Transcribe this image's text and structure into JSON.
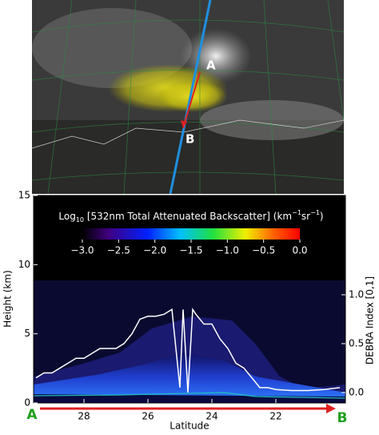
{
  "chart_data": {
    "type": "line",
    "satellite_labels": [
      "A",
      "B"
    ],
    "colorbar_label": [
      "Log",
      "10",
      " [532nm Total Attenuated Backscatter] (km",
      "−1",
      "sr",
      "−1",
      ")"
    ],
    "colorbar_lim": [
      -3,
      0
    ],
    "colorbar_ticks": [
      {
        "value": -3,
        "label": "−3.0"
      },
      {
        "value": -2.5,
        "label": "−2.5"
      },
      {
        "value": -2,
        "label": "−2.0"
      },
      {
        "value": -1.5,
        "label": "−1.5"
      },
      {
        "value": -1,
        "label": "−1.0"
      },
      {
        "value": -0.5,
        "label": "−0.5"
      },
      {
        "value": 0,
        "label": "0.0"
      }
    ],
    "x_label": "Latitude",
    "y_label": "Height (km)",
    "y2_label": "DEBRA Index [0,1]",
    "endpoints": [
      "A",
      "B"
    ],
    "xlim": [
      29.575,
      19.825
    ],
    "xticks": [
      28,
      26,
      24,
      22
    ],
    "ylim": [
      0,
      15
    ],
    "yticks": [
      0,
      5,
      10,
      15
    ],
    "y2lim": [
      -0.107,
      2.016
    ],
    "y2ticks": [
      {
        "value": 0,
        "label": "0.0"
      },
      {
        "value": 0.5,
        "label": "0.5"
      },
      {
        "value": 1,
        "label": "1.0"
      }
    ],
    "x": [
      29.5,
      29.25,
      29.0,
      28.75,
      28.5,
      28.25,
      28.0,
      27.75,
      27.5,
      27.25,
      27.0,
      26.75,
      26.5,
      26.25,
      26.0,
      25.75,
      25.5,
      25.25,
      25.0,
      24.9,
      24.75,
      24.6,
      24.5,
      24.25,
      24.0,
      23.75,
      23.5,
      23.25,
      23.0,
      22.75,
      22.5,
      22.25,
      22.0,
      21.5,
      21.0,
      20.5,
      20.0
    ],
    "series": [
      {
        "color": "#ffffff",
        "axis": "y2",
        "values": [
          0.15,
          0.2,
          0.2,
          0.25,
          0.3,
          0.35,
          0.35,
          0.4,
          0.45,
          0.45,
          0.45,
          0.5,
          0.6,
          0.75,
          0.78,
          0.78,
          0.8,
          0.85,
          0.05,
          0.85,
          0.0,
          0.85,
          0.8,
          0.7,
          0.7,
          0.55,
          0.45,
          0.3,
          0.25,
          0.15,
          0.05,
          0.05,
          0.03,
          0.02,
          0.02,
          0.03,
          0.05
        ]
      }
    ]
  }
}
